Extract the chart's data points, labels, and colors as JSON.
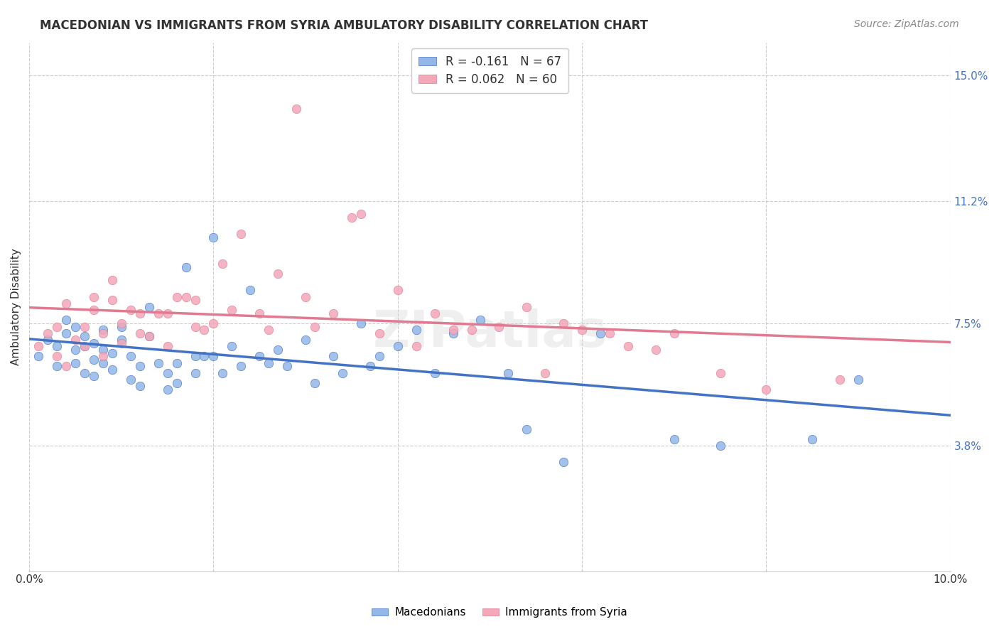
{
  "title": "MACEDONIAN VS IMMIGRANTS FROM SYRIA AMBULATORY DISABILITY CORRELATION CHART",
  "source": "Source: ZipAtlas.com",
  "xlabel": "",
  "ylabel": "Ambulatory Disability",
  "xlim": [
    0.0,
    0.1
  ],
  "ylim": [
    0.0,
    0.16
  ],
  "yticks": [
    0.038,
    0.075,
    0.112,
    0.15
  ],
  "ytick_labels": [
    "3.8%",
    "7.5%",
    "11.2%",
    "15.0%"
  ],
  "xticks": [
    0.0,
    0.02,
    0.04,
    0.06,
    0.08,
    0.1
  ],
  "xtick_labels": [
    "0.0%",
    "",
    "",
    "",
    "",
    "10.0%"
  ],
  "legend_macedonian": "Macedonians",
  "legend_syria": "Immigrants from Syria",
  "R_macedonian": -0.161,
  "N_macedonian": 67,
  "R_syria": 0.062,
  "N_syria": 60,
  "color_macedonian": "#93b8e8",
  "color_syria": "#f4a7b9",
  "line_color_macedonian": "#4472c4",
  "line_color_syria": "#e07a90",
  "watermark": "ZIPatlas",
  "background_color": "#ffffff",
  "macedonian_x": [
    0.001,
    0.002,
    0.003,
    0.003,
    0.004,
    0.004,
    0.005,
    0.005,
    0.005,
    0.006,
    0.006,
    0.006,
    0.007,
    0.007,
    0.007,
    0.008,
    0.008,
    0.008,
    0.009,
    0.009,
    0.01,
    0.01,
    0.011,
    0.011,
    0.012,
    0.012,
    0.013,
    0.013,
    0.014,
    0.015,
    0.015,
    0.016,
    0.016,
    0.017,
    0.018,
    0.018,
    0.019,
    0.02,
    0.02,
    0.021,
    0.022,
    0.023,
    0.024,
    0.025,
    0.026,
    0.027,
    0.028,
    0.03,
    0.031,
    0.033,
    0.034,
    0.036,
    0.037,
    0.038,
    0.04,
    0.042,
    0.044,
    0.046,
    0.049,
    0.052,
    0.054,
    0.058,
    0.062,
    0.07,
    0.075,
    0.085,
    0.09
  ],
  "macedonian_y": [
    0.065,
    0.07,
    0.062,
    0.068,
    0.072,
    0.076,
    0.063,
    0.067,
    0.074,
    0.06,
    0.068,
    0.071,
    0.059,
    0.064,
    0.069,
    0.063,
    0.067,
    0.073,
    0.061,
    0.066,
    0.07,
    0.074,
    0.058,
    0.065,
    0.056,
    0.062,
    0.071,
    0.08,
    0.063,
    0.055,
    0.06,
    0.057,
    0.063,
    0.092,
    0.06,
    0.065,
    0.065,
    0.101,
    0.065,
    0.06,
    0.068,
    0.062,
    0.085,
    0.065,
    0.063,
    0.067,
    0.062,
    0.07,
    0.057,
    0.065,
    0.06,
    0.075,
    0.062,
    0.065,
    0.068,
    0.073,
    0.06,
    0.072,
    0.076,
    0.06,
    0.043,
    0.033,
    0.072,
    0.04,
    0.038,
    0.04,
    0.058
  ],
  "syria_x": [
    0.001,
    0.002,
    0.003,
    0.003,
    0.004,
    0.004,
    0.005,
    0.006,
    0.006,
    0.007,
    0.007,
    0.008,
    0.008,
    0.009,
    0.009,
    0.01,
    0.01,
    0.011,
    0.012,
    0.012,
    0.013,
    0.014,
    0.015,
    0.015,
    0.016,
    0.017,
    0.018,
    0.018,
    0.019,
    0.02,
    0.021,
    0.022,
    0.023,
    0.025,
    0.026,
    0.027,
    0.029,
    0.03,
    0.031,
    0.033,
    0.035,
    0.036,
    0.038,
    0.04,
    0.042,
    0.044,
    0.046,
    0.048,
    0.051,
    0.054,
    0.056,
    0.058,
    0.06,
    0.063,
    0.065,
    0.068,
    0.07,
    0.075,
    0.08,
    0.088
  ],
  "syria_y": [
    0.068,
    0.072,
    0.065,
    0.074,
    0.062,
    0.081,
    0.07,
    0.074,
    0.068,
    0.079,
    0.083,
    0.065,
    0.072,
    0.082,
    0.088,
    0.069,
    0.075,
    0.079,
    0.072,
    0.078,
    0.071,
    0.078,
    0.068,
    0.078,
    0.083,
    0.083,
    0.074,
    0.082,
    0.073,
    0.075,
    0.093,
    0.079,
    0.102,
    0.078,
    0.073,
    0.09,
    0.14,
    0.083,
    0.074,
    0.078,
    0.107,
    0.108,
    0.072,
    0.085,
    0.068,
    0.078,
    0.073,
    0.073,
    0.074,
    0.08,
    0.06,
    0.075,
    0.073,
    0.072,
    0.068,
    0.067,
    0.072,
    0.06,
    0.055,
    0.058
  ]
}
